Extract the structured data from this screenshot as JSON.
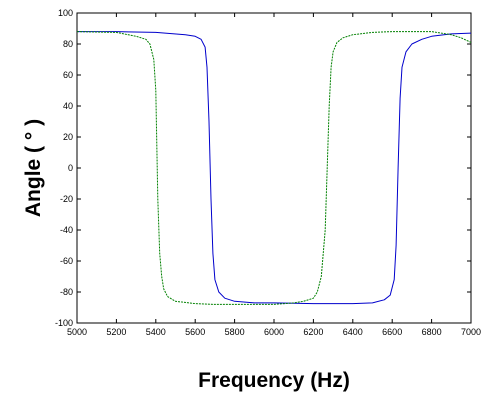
{
  "chart_data": {
    "type": "line",
    "xlabel": "Frequency (Hz)",
    "ylabel": "Angle ( ° )",
    "xlim": [
      5000,
      7000
    ],
    "ylim": [
      -100,
      100
    ],
    "xticks": [
      5000,
      5200,
      5400,
      5600,
      5800,
      6000,
      6200,
      6400,
      6600,
      6800,
      7000
    ],
    "yticks": [
      -100,
      -80,
      -60,
      -40,
      -20,
      0,
      20,
      40,
      60,
      80,
      100
    ],
    "grid": false,
    "legend": "none",
    "series": [
      {
        "color": "#0000cc",
        "style": "solid",
        "x": [
          5000,
          5200,
          5400,
          5550,
          5600,
          5630,
          5650,
          5660,
          5670,
          5680,
          5690,
          5700,
          5720,
          5750,
          5800,
          5900,
          6000,
          6100,
          6200,
          6300,
          6400,
          6500,
          6560,
          6590,
          6610,
          6620,
          6630,
          6640,
          6650,
          6670,
          6700,
          6750,
          6800,
          6900,
          7000
        ],
        "y": [
          88,
          88,
          87.5,
          86,
          85,
          83,
          78,
          65,
          30,
          -20,
          -55,
          -72,
          -80,
          -84,
          -86,
          -87,
          -87,
          -87.3,
          -87.5,
          -87.5,
          -87.5,
          -87,
          -85,
          -82,
          -72,
          -50,
          0,
          45,
          65,
          75,
          80,
          83,
          85,
          86.5,
          87
        ]
      },
      {
        "color": "#008000",
        "style": "dashed",
        "x": [
          5000,
          5200,
          5300,
          5350,
          5370,
          5390,
          5400,
          5410,
          5420,
          5430,
          5440,
          5460,
          5500,
          5600,
          5700,
          5800,
          5900,
          6000,
          6100,
          6150,
          6200,
          6220,
          6240,
          6260,
          6270,
          6280,
          6290,
          6300,
          6320,
          6350,
          6400,
          6500,
          6600,
          6700,
          6800,
          6900,
          6950,
          7000
        ],
        "y": [
          88,
          87.5,
          85,
          83,
          80,
          70,
          50,
          -20,
          -55,
          -70,
          -78,
          -83,
          -86,
          -87.5,
          -88,
          -88,
          -88,
          -88,
          -87,
          -86,
          -84,
          -80,
          -70,
          -40,
          0,
          40,
          65,
          75,
          81,
          84,
          86,
          87.5,
          88,
          88,
          88,
          86,
          84,
          81
        ]
      }
    ]
  }
}
